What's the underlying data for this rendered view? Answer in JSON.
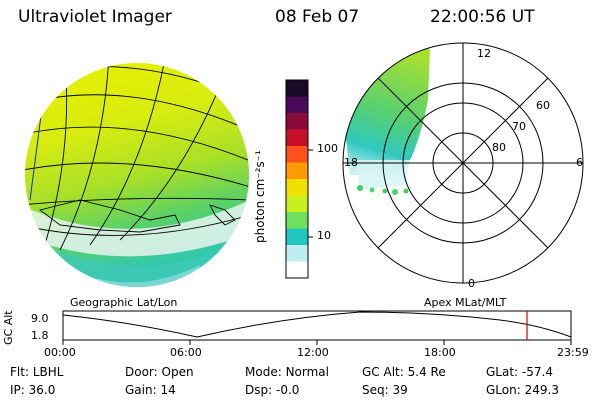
{
  "header": {
    "instrument": "Ultraviolet Imager",
    "date": "08 Feb 07",
    "time": "22:00:56 UT"
  },
  "colorbar": {
    "label": "photon cm⁻²s⁻¹",
    "ticks": [
      "100",
      "10"
    ],
    "colors": [
      "#1a0a2a",
      "#4a0a5a",
      "#8a0a3a",
      "#c8102a",
      "#ff5020",
      "#ff9a00",
      "#f0e000",
      "#c8f020",
      "#70e060",
      "#20c8c0",
      "#c0eef0",
      "#ffffff"
    ]
  },
  "polar_plot": {
    "mlt_labels": [
      "12",
      "18",
      "6",
      "0"
    ],
    "lat_labels": [
      "60",
      "70",
      "80"
    ]
  },
  "orbit": {
    "axis_label": "GC Alt",
    "y_ticks": [
      "9.0",
      "1.8"
    ],
    "left_title": "Geographic Lat/Lon",
    "right_title": "Apex MLat/MLT",
    "x_ticks": [
      "00:00",
      "06:00",
      "12:00",
      "18:00",
      "23:59"
    ],
    "marker_color": "#d00000"
  },
  "status": {
    "row1": [
      {
        "label": "Flt:",
        "value": "LBHL"
      },
      {
        "label": "Door:",
        "value": "Open"
      },
      {
        "label": "Mode:",
        "value": "Normal"
      },
      {
        "label": "GC Alt:",
        "value": "5.4 Re"
      },
      {
        "label": "GLat:",
        "value": "-57.4"
      }
    ],
    "row2": [
      {
        "label": "IP:",
        "value": "36.0"
      },
      {
        "label": "Gain:",
        "value": "14"
      },
      {
        "label": "Dsp:",
        "value": "-0.0"
      },
      {
        "label": "Seq:",
        "value": "39"
      },
      {
        "label": "GLon:",
        "value": "249.3"
      }
    ]
  }
}
